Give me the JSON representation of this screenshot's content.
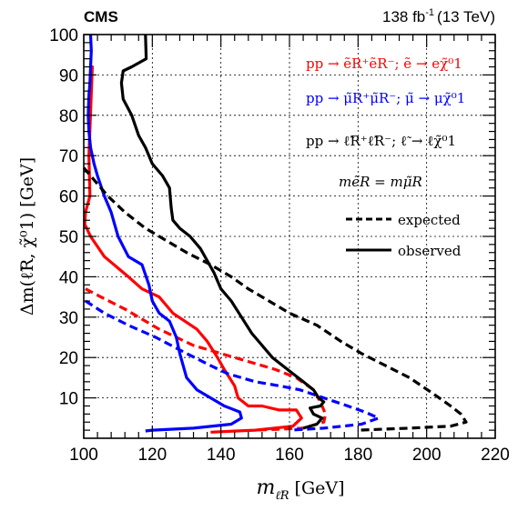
{
  "header": {
    "experiment": "CMS",
    "luminosity": "138 fb",
    "luminosity_exp": "-1",
    "energy": "(13 TeV)"
  },
  "chart_data": {
    "type": "line",
    "xlabel": "m",
    "xlabel_sub": "ℓ̃R",
    "xlabel_unit": "[GeV]",
    "ylabel": "Δm(ℓ̃R, χ̃⁰1) [GeV]",
    "xlim": [
      100,
      220
    ],
    "ylim": [
      0,
      100
    ],
    "x_ticks": [
      100,
      120,
      140,
      160,
      180,
      200,
      220
    ],
    "y_ticks": [
      10,
      20,
      30,
      40,
      50,
      60,
      70,
      80,
      90,
      100
    ],
    "grid": true,
    "legend": {
      "placement": "top-right",
      "entries": [
        {
          "text": "pp → ẽR⁺ẽR⁻; ẽ → eχ̃⁰1",
          "color": "#ff0000"
        },
        {
          "text": "pp → μ̃R⁺μ̃R⁻; μ̃ → μχ̃⁰1",
          "color": "#0000ff"
        },
        {
          "text": "pp → ℓ̃R⁺ℓ̃R⁻; ℓ̃ → ℓχ̃⁰1",
          "color": "#000000"
        }
      ],
      "condition": "mẽR = mμ̃R",
      "styles": [
        {
          "text": "expected",
          "dash": "dashed"
        },
        {
          "text": "observed",
          "dash": "solid"
        }
      ]
    },
    "series": [
      {
        "id": "e_obs",
        "color": "#ff0000",
        "dash": "solid",
        "points": [
          [
            102.3,
            88
          ],
          [
            102.5,
            92
          ],
          [
            101.5,
            70
          ],
          [
            101.8,
            60
          ],
          [
            100.5,
            56
          ],
          [
            100.3,
            53
          ],
          [
            102,
            50
          ],
          [
            106,
            45
          ],
          [
            113,
            40
          ],
          [
            117,
            37
          ],
          [
            122,
            35
          ],
          [
            126,
            31
          ],
          [
            133,
            27
          ],
          [
            136,
            24
          ],
          [
            139,
            20
          ],
          [
            141,
            17
          ],
          [
            144,
            13
          ],
          [
            145,
            10
          ],
          [
            148,
            8
          ],
          [
            152,
            8
          ],
          [
            157,
            7
          ],
          [
            162,
            7
          ],
          [
            163.5,
            5
          ],
          [
            161,
            3
          ],
          [
            150,
            2
          ],
          [
            137,
            1.5
          ]
        ]
      },
      {
        "id": "e_exp",
        "color": "#ff0000",
        "dash": "dashed",
        "points": [
          [
            100.5,
            37
          ],
          [
            105,
            35
          ],
          [
            112,
            32
          ],
          [
            122,
            27
          ],
          [
            132,
            23
          ],
          [
            140,
            21
          ],
          [
            148,
            19
          ],
          [
            156,
            17
          ],
          [
            162,
            15
          ],
          [
            167,
            12
          ],
          [
            169,
            9
          ],
          [
            170.5,
            6
          ],
          [
            170,
            4
          ],
          [
            164,
            2.5
          ],
          [
            150,
            2
          ]
        ]
      },
      {
        "id": "mu_obs",
        "color": "#0000ff",
        "dash": "solid",
        "points": [
          [
            102,
            100
          ],
          [
            102.2,
            96
          ],
          [
            102,
            92
          ],
          [
            101.8,
            88
          ],
          [
            101.5,
            85
          ],
          [
            101.3,
            80
          ],
          [
            101.5,
            76
          ],
          [
            102,
            72
          ],
          [
            103,
            68
          ],
          [
            104,
            65
          ],
          [
            106,
            60
          ],
          [
            108,
            56
          ],
          [
            110,
            50
          ],
          [
            113,
            45
          ],
          [
            117,
            43
          ],
          [
            119,
            38
          ],
          [
            120,
            34
          ],
          [
            122,
            31
          ],
          [
            125,
            29
          ],
          [
            127,
            25
          ],
          [
            128,
            21
          ],
          [
            129,
            18
          ],
          [
            130,
            15
          ],
          [
            133,
            12
          ],
          [
            137,
            10
          ],
          [
            141,
            8
          ],
          [
            145.5,
            6.5
          ],
          [
            146,
            5
          ],
          [
            143,
            3.5
          ],
          [
            132,
            2.5
          ],
          [
            120,
            2
          ],
          [
            118,
            1.8
          ]
        ]
      },
      {
        "id": "mu_exp",
        "color": "#0000ff",
        "dash": "dashed",
        "points": [
          [
            100.5,
            34
          ],
          [
            106,
            31
          ],
          [
            113,
            28
          ],
          [
            121,
            25
          ],
          [
            130,
            21
          ],
          [
            137,
            18
          ],
          [
            142,
            16
          ],
          [
            150,
            14
          ],
          [
            157,
            13
          ],
          [
            163,
            12
          ],
          [
            170,
            10
          ],
          [
            177,
            8
          ],
          [
            182,
            6.5
          ],
          [
            186,
            5
          ],
          [
            181,
            3.5
          ],
          [
            170,
            2.5
          ],
          [
            160,
            2
          ]
        ]
      },
      {
        "id": "l_obs",
        "color": "#000000",
        "dash": "solid",
        "points": [
          [
            118,
            100
          ],
          [
            118.2,
            94
          ],
          [
            114,
            92
          ],
          [
            111.5,
            91
          ],
          [
            111,
            88
          ],
          [
            111.5,
            84
          ],
          [
            114,
            80
          ],
          [
            116,
            75
          ],
          [
            118,
            72
          ],
          [
            120,
            68
          ],
          [
            123,
            65
          ],
          [
            125,
            62
          ],
          [
            125.5,
            57
          ],
          [
            126,
            54
          ],
          [
            128,
            52
          ],
          [
            131,
            50
          ],
          [
            134,
            47
          ],
          [
            136,
            44
          ],
          [
            138,
            41
          ],
          [
            140,
            37
          ],
          [
            143,
            34
          ],
          [
            146,
            30
          ],
          [
            149,
            26
          ],
          [
            152,
            23
          ],
          [
            155,
            20
          ],
          [
            158,
            18
          ],
          [
            161,
            16
          ],
          [
            164,
            14
          ],
          [
            167,
            12
          ],
          [
            168.5,
            10
          ],
          [
            170,
            9
          ],
          [
            169,
            8
          ],
          [
            166,
            7.5
          ],
          [
            167,
            6
          ],
          [
            169.5,
            5
          ],
          [
            168,
            3.5
          ],
          [
            164,
            2.5
          ]
        ]
      },
      {
        "id": "l_exp",
        "color": "#000000",
        "dash": "dashed",
        "points": [
          [
            100,
            67
          ],
          [
            103,
            64
          ],
          [
            107,
            60
          ],
          [
            112,
            56
          ],
          [
            118,
            52
          ],
          [
            124,
            49
          ],
          [
            130,
            46
          ],
          [
            137,
            43
          ],
          [
            143,
            40
          ],
          [
            148,
            37
          ],
          [
            154,
            34
          ],
          [
            160,
            31
          ],
          [
            168,
            28
          ],
          [
            175,
            24
          ],
          [
            181,
            21
          ],
          [
            188,
            18
          ],
          [
            195,
            15
          ],
          [
            202,
            11
          ],
          [
            207,
            8
          ],
          [
            210,
            6
          ],
          [
            211.5,
            4
          ],
          [
            207,
            3
          ],
          [
            195,
            2.5
          ],
          [
            180,
            2
          ]
        ]
      }
    ]
  }
}
